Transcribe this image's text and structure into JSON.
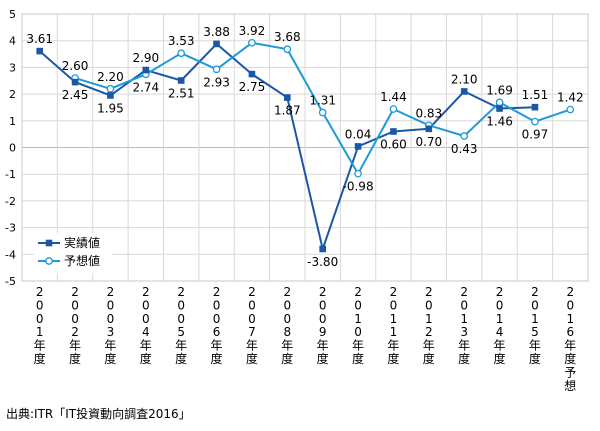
{
  "source_text": "出典:ITR「IT投資動向調査2016」",
  "colors": {
    "actual": "#1c57a7",
    "forecast": "#1e9ad6",
    "grid": "#d8d8d8",
    "frame": "#c8c8c8"
  },
  "chart_data": {
    "type": "line",
    "title": "",
    "xlabel": "",
    "ylabel": "",
    "ylim": [
      -5,
      5
    ],
    "yticks": [
      -5,
      -4,
      -3,
      -2,
      -1,
      0,
      1,
      2,
      3,
      4,
      5
    ],
    "grid": true,
    "legend_position": "bottom-left",
    "categories": [
      "2001年度",
      "2002年度",
      "2003年度",
      "2004年度",
      "2005年度",
      "2006年度",
      "2007年度",
      "2008年度",
      "2009年度",
      "2010年度",
      "2011年度",
      "2012年度",
      "2013年度",
      "2014年度",
      "2015年度",
      "2016年度予想"
    ],
    "series": [
      {
        "name": "実績値",
        "marker": "filled-square",
        "values": [
          3.61,
          2.45,
          1.95,
          2.9,
          2.51,
          3.88,
          2.75,
          1.87,
          -3.8,
          0.04,
          0.6,
          0.7,
          2.1,
          1.46,
          1.51,
          null
        ],
        "labels": [
          "3.61",
          "2.45",
          "1.95",
          "2.90",
          "2.51",
          "3.88",
          "2.75",
          "1.87",
          "-3.80",
          "0.04",
          "0.60",
          "0.70",
          "2.10",
          "1.46",
          "1.51",
          ""
        ]
      },
      {
        "name": "予想値",
        "marker": "open-circle",
        "values": [
          null,
          2.6,
          2.2,
          2.74,
          3.53,
          2.93,
          3.92,
          3.68,
          1.31,
          -0.98,
          1.44,
          0.83,
          0.43,
          1.69,
          0.97,
          1.42
        ],
        "labels": [
          "",
          "2.60",
          "2.20",
          "2.74",
          "3.53",
          "2.93",
          "3.92",
          "3.68",
          "1.31",
          "-0.98",
          "1.44",
          "0.83",
          "0.43",
          "1.69",
          "0.97",
          "1.42"
        ]
      }
    ]
  }
}
